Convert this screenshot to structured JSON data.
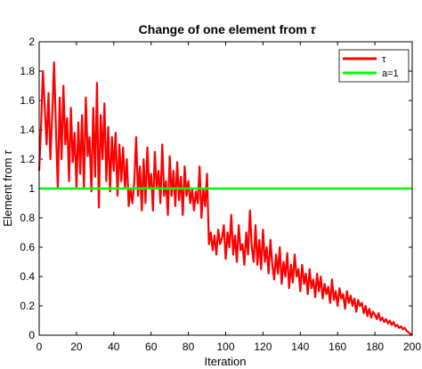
{
  "chart_data": {
    "type": "line",
    "title_prefix": "Change of one element from",
    "title_symbol": "τ",
    "xlabel": "Iteration",
    "ylabel_prefix": "Element from",
    "ylabel_symbol": "τ",
    "xlim": [
      0,
      200
    ],
    "ylim": [
      0,
      2
    ],
    "xticks": [
      0,
      20,
      40,
      60,
      80,
      100,
      120,
      140,
      160,
      180,
      200
    ],
    "yticks": [
      0,
      0.2,
      0.4,
      0.6,
      0.8,
      1,
      1.2,
      1.4,
      1.6,
      1.8,
      2
    ],
    "xtick_labels": [
      "0",
      "20",
      "40",
      "60",
      "80",
      "100",
      "120",
      "140",
      "160",
      "180",
      "200"
    ],
    "ytick_labels": [
      "0",
      "0.2",
      "0.4",
      "0.6",
      "0.8",
      "1",
      "1.2",
      "1.4",
      "1.6",
      "1.8",
      "2"
    ],
    "grid": false,
    "legend_position": "top-right",
    "series": [
      {
        "name": "τ",
        "color": "#ff0000",
        "x": [
          0,
          1,
          2,
          3,
          4,
          5,
          6,
          7,
          8,
          9,
          10,
          11,
          12,
          13,
          14,
          15,
          16,
          17,
          18,
          19,
          20,
          21,
          22,
          23,
          24,
          25,
          26,
          27,
          28,
          29,
          30,
          31,
          32,
          33,
          34,
          35,
          36,
          37,
          38,
          39,
          40,
          41,
          42,
          43,
          44,
          45,
          46,
          47,
          48,
          49,
          50,
          51,
          52,
          53,
          54,
          55,
          56,
          57,
          58,
          59,
          60,
          61,
          62,
          63,
          64,
          65,
          66,
          67,
          68,
          69,
          70,
          71,
          72,
          73,
          74,
          75,
          76,
          77,
          78,
          79,
          80,
          81,
          82,
          83,
          84,
          85,
          86,
          87,
          88,
          89,
          90,
          91,
          92,
          93,
          94,
          95,
          96,
          97,
          98,
          99,
          100,
          101,
          102,
          103,
          104,
          105,
          106,
          107,
          108,
          109,
          110,
          111,
          112,
          113,
          114,
          115,
          116,
          117,
          118,
          119,
          120,
          121,
          122,
          123,
          124,
          125,
          126,
          127,
          128,
          129,
          130,
          131,
          132,
          133,
          134,
          135,
          136,
          137,
          138,
          139,
          140,
          141,
          142,
          143,
          144,
          145,
          146,
          147,
          148,
          149,
          150,
          151,
          152,
          153,
          154,
          155,
          156,
          157,
          158,
          159,
          160,
          161,
          162,
          163,
          164,
          165,
          166,
          167,
          168,
          169,
          170,
          171,
          172,
          173,
          174,
          175,
          176,
          177,
          178,
          179,
          180,
          181,
          182,
          183,
          184,
          185,
          186,
          187,
          188,
          189,
          190,
          191,
          192,
          193,
          194,
          195,
          196,
          197,
          198,
          199,
          200
        ],
        "y": [
          1.12,
          1.42,
          1.8,
          1.55,
          1.3,
          1.65,
          1.2,
          1.5,
          1.86,
          1.4,
          1.0,
          1.62,
          1.2,
          1.7,
          1.3,
          1.48,
          1.05,
          1.55,
          1.18,
          1.38,
          1.0,
          1.45,
          1.1,
          1.5,
          1.0,
          1.62,
          1.22,
          1.35,
          0.98,
          1.55,
          1.08,
          1.72,
          0.87,
          1.5,
          1.2,
          1.58,
          1.05,
          1.42,
          0.98,
          1.35,
          1.12,
          1.38,
          0.95,
          1.3,
          1.05,
          1.28,
          1.0,
          1.2,
          0.88,
          1.0,
          0.9,
          1.05,
          1.35,
          0.95,
          1.15,
          0.85,
          1.2,
          0.9,
          1.28,
          1.0,
          1.1,
          0.85,
          1.25,
          1.0,
          1.12,
          0.9,
          1.3,
          0.95,
          1.05,
          0.82,
          1.22,
          0.95,
          1.12,
          0.88,
          1.18,
          0.92,
          1.08,
          0.82,
          1.15,
          0.95,
          1.05,
          0.9,
          1.0,
          0.85,
          0.98,
          0.9,
          1.15,
          0.8,
          1.0,
          0.88,
          1.1,
          0.62,
          0.7,
          0.58,
          0.68,
          0.55,
          0.72,
          0.62,
          0.66,
          0.75,
          0.52,
          0.7,
          0.6,
          0.82,
          0.55,
          0.68,
          0.5,
          0.75,
          0.58,
          0.62,
          0.48,
          0.7,
          0.55,
          0.85,
          0.6,
          0.5,
          0.75,
          0.48,
          0.65,
          0.45,
          0.72,
          0.5,
          0.6,
          0.42,
          0.65,
          0.48,
          0.38,
          0.55,
          0.42,
          0.6,
          0.35,
          0.5,
          0.4,
          0.56,
          0.32,
          0.48,
          0.36,
          0.55,
          0.4,
          0.45,
          0.3,
          0.48,
          0.35,
          0.42,
          0.28,
          0.45,
          0.32,
          0.38,
          0.26,
          0.42,
          0.3,
          0.4,
          0.25,
          0.35,
          0.28,
          0.33,
          0.22,
          0.38,
          0.24,
          0.3,
          0.2,
          0.32,
          0.25,
          0.28,
          0.18,
          0.3,
          0.22,
          0.27,
          0.2,
          0.25,
          0.16,
          0.24,
          0.2,
          0.22,
          0.15,
          0.2,
          0.13,
          0.18,
          0.12,
          0.16,
          0.14,
          0.11,
          0.15,
          0.1,
          0.12,
          0.09,
          0.11,
          0.08,
          0.1,
          0.07,
          0.09,
          0.06,
          0.07,
          0.05,
          0.06,
          0.04,
          0.05,
          0.03,
          0.02,
          0.01,
          0.0
        ]
      },
      {
        "name": "a=1",
        "color": "#00ff00",
        "x": [
          0,
          200
        ],
        "y": [
          1,
          1
        ]
      }
    ]
  }
}
